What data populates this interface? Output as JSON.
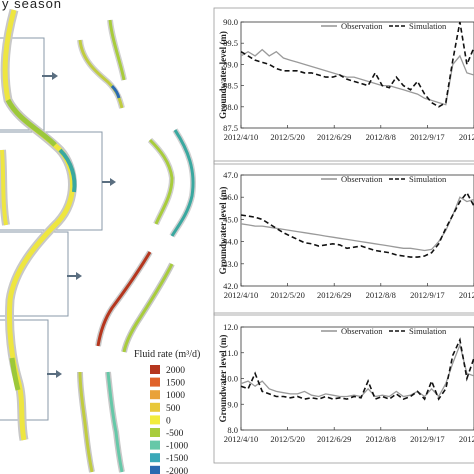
{
  "figure": {
    "title_fragment": "y season"
  },
  "map_panel": {
    "legend": {
      "title": "Fluid rate (m³/d)",
      "items": [
        {
          "label": "2000",
          "color": "#b5361e"
        },
        {
          "label": "1500",
          "color": "#e0622a"
        },
        {
          "label": "1000",
          "color": "#e9a23a"
        },
        {
          "label": "500",
          "color": "#e8c83a"
        },
        {
          "label": "0",
          "color": "#f2ec3c"
        },
        {
          "label": "-500",
          "color": "#a8cc3c"
        },
        {
          "label": "-1000",
          "color": "#66c8a8"
        },
        {
          "label": "-1500",
          "color": "#3aa8b8"
        },
        {
          "label": "-2000",
          "color": "#2a6ab0"
        }
      ]
    }
  },
  "chart_data": [
    {
      "type": "line",
      "ylabel": "Groundwater level (m)",
      "xlabel": "",
      "x_ticks": [
        "2012/4/10",
        "2012/5/20",
        "2012/6/29",
        "2012/8/8",
        "2012/9/17",
        "2012/10/"
      ],
      "y_ticks": [
        "87.5",
        "88.0",
        "88.5",
        "89.0",
        "89.5",
        "90.0"
      ],
      "ylim": [
        87.5,
        90.0
      ],
      "legend_position": "top",
      "series": [
        {
          "name": "Observation",
          "style": "solid-gray",
          "values": [
            89.2,
            89.3,
            89.2,
            89.35,
            89.2,
            89.3,
            89.15,
            89.1,
            89.05,
            89.0,
            88.95,
            88.9,
            88.85,
            88.8,
            88.75,
            88.7,
            88.7,
            88.65,
            88.6,
            88.55,
            88.5,
            88.5,
            88.45,
            88.4,
            88.35,
            88.3,
            88.2,
            88.15,
            88.1,
            88.05,
            89.0,
            89.2,
            88.8,
            88.75
          ]
        },
        {
          "name": "Simulation",
          "style": "dashed-black",
          "values": [
            89.3,
            89.2,
            89.1,
            89.05,
            89.0,
            88.9,
            88.85,
            88.85,
            88.85,
            88.8,
            88.8,
            88.75,
            88.7,
            88.7,
            88.75,
            88.65,
            88.6,
            88.55,
            88.5,
            88.8,
            88.5,
            88.45,
            88.7,
            88.5,
            88.4,
            88.6,
            88.3,
            88.1,
            88.0,
            88.1,
            89.1,
            90.0,
            89.0,
            89.4
          ]
        }
      ]
    },
    {
      "type": "line",
      "ylabel": "Groundwater level (m)",
      "xlabel": "",
      "x_ticks": [
        "2012/4/10",
        "2012/5/20",
        "2012/6/29",
        "2012/8/8",
        "2012/9/17",
        "2012/10/"
      ],
      "y_ticks": [
        "42.0",
        "43.0",
        "44.0",
        "45.0",
        "46.0",
        "47.0"
      ],
      "ylim": [
        42.0,
        47.0
      ],
      "legend_position": "top",
      "series": [
        {
          "name": "Observation",
          "style": "solid-gray",
          "values": [
            44.8,
            44.75,
            44.7,
            44.7,
            44.65,
            44.6,
            44.55,
            44.5,
            44.45,
            44.4,
            44.35,
            44.3,
            44.25,
            44.2,
            44.15,
            44.1,
            44.05,
            44.0,
            43.95,
            43.9,
            43.85,
            43.8,
            43.75,
            43.7,
            43.7,
            43.65,
            43.6,
            43.65,
            44.0,
            44.5,
            45.2,
            46.0,
            45.8,
            45.9
          ]
        },
        {
          "name": "Simulation",
          "style": "dashed-black",
          "values": [
            45.2,
            45.15,
            45.1,
            45.0,
            44.8,
            44.6,
            44.4,
            44.25,
            44.1,
            43.95,
            43.9,
            43.8,
            43.85,
            43.9,
            43.85,
            43.7,
            43.75,
            43.8,
            43.7,
            43.6,
            43.55,
            43.5,
            43.4,
            43.35,
            43.3,
            43.3,
            43.35,
            43.5,
            43.9,
            44.6,
            45.2,
            45.8,
            46.2,
            45.6
          ]
        }
      ]
    },
    {
      "type": "line",
      "ylabel": "Groundwater level (m)",
      "xlabel": "",
      "x_ticks": [
        "2012/4/10",
        "2012/5/20",
        "2012/6/29",
        "2012/8/8",
        "2012/9/17",
        "2012/10/"
      ],
      "y_ticks": [
        "8.0",
        "9.0",
        "10.0",
        "11.0",
        "12.0"
      ],
      "ylim": [
        8.0,
        12.0
      ],
      "legend_position": "top",
      "series": [
        {
          "name": "Observation",
          "style": "solid-gray",
          "values": [
            9.8,
            9.9,
            9.7,
            9.9,
            9.6,
            9.5,
            9.45,
            9.4,
            9.4,
            9.5,
            9.35,
            9.3,
            9.4,
            9.35,
            9.3,
            9.3,
            9.35,
            9.3,
            9.6,
            9.3,
            9.35,
            9.3,
            9.5,
            9.3,
            9.35,
            9.5,
            9.3,
            9.6,
            9.3,
            9.8,
            10.6,
            11.3,
            10.2,
            10.1
          ]
        },
        {
          "name": "Simulation",
          "style": "dashed-black",
          "values": [
            9.7,
            9.6,
            10.2,
            9.5,
            9.4,
            9.3,
            9.3,
            9.25,
            9.3,
            9.2,
            9.25,
            9.2,
            9.3,
            9.2,
            9.25,
            9.2,
            9.3,
            9.25,
            9.9,
            9.2,
            9.3,
            9.2,
            9.4,
            9.2,
            9.3,
            9.5,
            9.2,
            9.9,
            9.2,
            9.6,
            10.9,
            11.5,
            10.0,
            10.8
          ]
        }
      ]
    }
  ]
}
